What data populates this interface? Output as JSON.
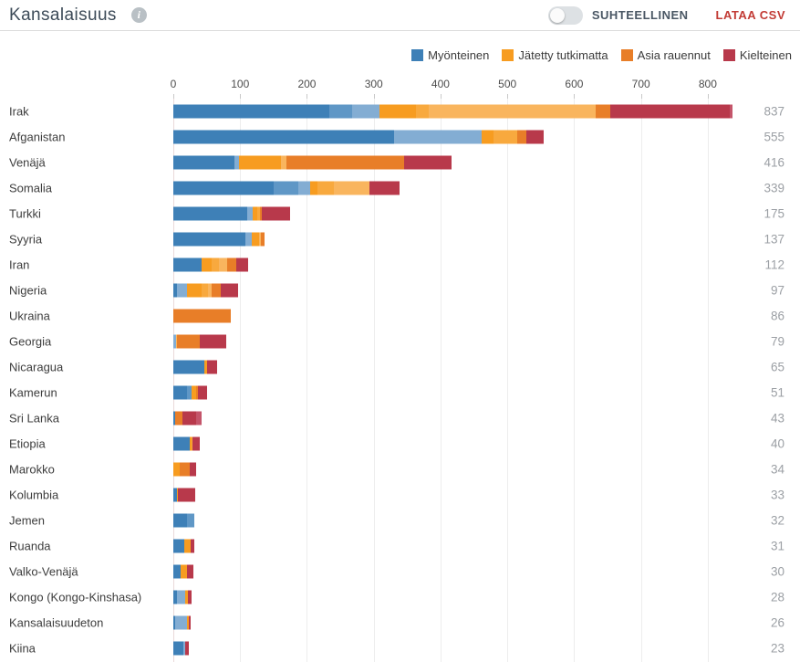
{
  "header": {
    "title": "Kansalaisuus",
    "toggle_label": "SUHTEELLINEN",
    "toggle_state": "off",
    "download_label": "LATAA CSV",
    "accent_red": "#c23b35"
  },
  "legend": [
    {
      "label": "Myönteinen",
      "color": "#3e80b7"
    },
    {
      "label": "Jätetty tutkimatta",
      "color": "#f79c20"
    },
    {
      "label": "Asia rauennut",
      "color": "#e87e28"
    },
    {
      "label": "Kielteinen",
      "color": "#b8394b"
    }
  ],
  "palette": {
    "b1": "#3e80b7",
    "b2": "#5f97c6",
    "b3": "#83add3",
    "o1": "#f79c20",
    "o2": "#f8a93e",
    "o3": "#f9b55e",
    "od": "#e87e28",
    "r1": "#b8394b",
    "r2": "#c4556a"
  },
  "chart_data": {
    "type": "bar",
    "orientation": "horizontal",
    "stacked": true,
    "title": "Kansalaisuus",
    "xlabel": "",
    "ylabel": "",
    "axis_ticks": [
      0,
      100,
      200,
      300,
      400,
      500,
      600,
      700,
      800
    ],
    "xlim": [
      0,
      837
    ],
    "grid": true,
    "legend_position": "top-right",
    "categories": [
      "Irak",
      "Afganistan",
      "Venäjä",
      "Somalia",
      "Turkki",
      "Syyria",
      "Iran",
      "Nigeria",
      "Ukraina",
      "Georgia",
      "Nicaragua",
      "Kamerun",
      "Sri Lanka",
      "Etiopia",
      "Marokko",
      "Kolumbia",
      "Jemen",
      "Ruanda",
      "Valko-Venäjä",
      "Kongo (Kongo-Kinshasa)",
      "Kansalaisuudeton",
      "Kiina"
    ],
    "totals": [
      837,
      555,
      416,
      339,
      175,
      137,
      112,
      97,
      86,
      79,
      65,
      51,
      43,
      40,
      34,
      33,
      32,
      31,
      30,
      28,
      26,
      23
    ],
    "series": [
      {
        "name": "Myönteinen",
        "values": [
          309,
          461,
          98,
          205,
          119,
          117,
          42,
          21,
          0,
          4,
          47,
          27,
          3,
          24,
          0,
          5,
          32,
          17,
          11,
          18,
          20,
          18
        ]
      },
      {
        "name": "Jätetty tutkimatta",
        "values": [
          323,
          54,
          71,
          89,
          11,
          14,
          38,
          37,
          0,
          2,
          4,
          7,
          0,
          5,
          9,
          2,
          0,
          9,
          10,
          4,
          3,
          0
        ]
      },
      {
        "name": "Asia rauennut",
        "values": [
          22,
          14,
          177,
          0,
          3,
          6,
          14,
          13,
          86,
          34,
          0,
          3,
          11,
          0,
          15,
          0,
          0,
          0,
          0,
          0,
          0,
          0
        ]
      },
      {
        "name": "Kielteinen",
        "values": [
          183,
          26,
          70,
          45,
          42,
          0,
          18,
          26,
          0,
          39,
          14,
          14,
          29,
          11,
          10,
          26,
          0,
          5,
          9,
          6,
          3,
          5
        ]
      }
    ],
    "rows": [
      {
        "name": "Irak",
        "total": 837,
        "segments": [
          {
            "c": "b1",
            "v": 234
          },
          {
            "c": "b2",
            "v": 33
          },
          {
            "c": "b3",
            "v": 42
          },
          {
            "c": "o1",
            "v": 54
          },
          {
            "c": "o2",
            "v": 19
          },
          {
            "c": "o3",
            "v": 250
          },
          {
            "c": "od",
            "v": 22
          },
          {
            "c": "r1",
            "v": 179
          },
          {
            "c": "r2",
            "v": 4
          }
        ]
      },
      {
        "name": "Afganistan",
        "total": 555,
        "segments": [
          {
            "c": "b1",
            "v": 330
          },
          {
            "c": "b3",
            "v": 131
          },
          {
            "c": "o1",
            "v": 18
          },
          {
            "c": "o2",
            "v": 36
          },
          {
            "c": "od",
            "v": 14
          },
          {
            "c": "r1",
            "v": 26
          }
        ]
      },
      {
        "name": "Venäjä",
        "total": 416,
        "segments": [
          {
            "c": "b1",
            "v": 92
          },
          {
            "c": "b3",
            "v": 6
          },
          {
            "c": "o1",
            "v": 63
          },
          {
            "c": "o3",
            "v": 8
          },
          {
            "c": "od",
            "v": 177
          },
          {
            "c": "r1",
            "v": 70
          }
        ]
      },
      {
        "name": "Somalia",
        "total": 339,
        "segments": [
          {
            "c": "b1",
            "v": 150
          },
          {
            "c": "b2",
            "v": 37
          },
          {
            "c": "b3",
            "v": 18
          },
          {
            "c": "o1",
            "v": 11
          },
          {
            "c": "o2",
            "v": 25
          },
          {
            "c": "o3",
            "v": 53
          },
          {
            "c": "r1",
            "v": 45
          }
        ]
      },
      {
        "name": "Turkki",
        "total": 175,
        "segments": [
          {
            "c": "b1",
            "v": 111
          },
          {
            "c": "b3",
            "v": 8
          },
          {
            "c": "o1",
            "v": 6
          },
          {
            "c": "o2",
            "v": 5
          },
          {
            "c": "od",
            "v": 3
          },
          {
            "c": "r1",
            "v": 42
          }
        ]
      },
      {
        "name": "Syyria",
        "total": 137,
        "segments": [
          {
            "c": "b1",
            "v": 108
          },
          {
            "c": "b3",
            "v": 9
          },
          {
            "c": "o1",
            "v": 12
          },
          {
            "c": "o3",
            "v": 2
          },
          {
            "c": "od",
            "v": 6
          }
        ]
      },
      {
        "name": "Iran",
        "total": 112,
        "segments": [
          {
            "c": "b1",
            "v": 42
          },
          {
            "c": "o1",
            "v": 15
          },
          {
            "c": "o2",
            "v": 11
          },
          {
            "c": "o3",
            "v": 12
          },
          {
            "c": "od",
            "v": 14
          },
          {
            "c": "r1",
            "v": 18
          }
        ]
      },
      {
        "name": "Nigeria",
        "total": 97,
        "segments": [
          {
            "c": "b1",
            "v": 6
          },
          {
            "c": "b3",
            "v": 15
          },
          {
            "c": "o1",
            "v": 21
          },
          {
            "c": "o2",
            "v": 10
          },
          {
            "c": "o3",
            "v": 6
          },
          {
            "c": "od",
            "v": 13
          },
          {
            "c": "r1",
            "v": 26
          }
        ]
      },
      {
        "name": "Ukraina",
        "total": 86,
        "segments": [
          {
            "c": "od",
            "v": 86
          }
        ]
      },
      {
        "name": "Georgia",
        "total": 79,
        "segments": [
          {
            "c": "b3",
            "v": 4
          },
          {
            "c": "o3",
            "v": 2
          },
          {
            "c": "od",
            "v": 34
          },
          {
            "c": "r1",
            "v": 39
          }
        ]
      },
      {
        "name": "Nicaragua",
        "total": 65,
        "segments": [
          {
            "c": "b1",
            "v": 47
          },
          {
            "c": "o1",
            "v": 4
          },
          {
            "c": "r1",
            "v": 14
          }
        ]
      },
      {
        "name": "Kamerun",
        "total": 51,
        "segments": [
          {
            "c": "b1",
            "v": 21
          },
          {
            "c": "b2",
            "v": 6
          },
          {
            "c": "o1",
            "v": 7
          },
          {
            "c": "od",
            "v": 3
          },
          {
            "c": "r1",
            "v": 14
          }
        ]
      },
      {
        "name": "Sri Lanka",
        "total": 43,
        "segments": [
          {
            "c": "b1",
            "v": 3
          },
          {
            "c": "od",
            "v": 11
          },
          {
            "c": "r1",
            "v": 20
          },
          {
            "c": "r2",
            "v": 9
          }
        ]
      },
      {
        "name": "Etiopia",
        "total": 40,
        "segments": [
          {
            "c": "b1",
            "v": 24
          },
          {
            "c": "o1",
            "v": 3
          },
          {
            "c": "o2",
            "v": 2
          },
          {
            "c": "r1",
            "v": 11
          }
        ]
      },
      {
        "name": "Marokko",
        "total": 34,
        "segments": [
          {
            "c": "o1",
            "v": 9
          },
          {
            "c": "od",
            "v": 15
          },
          {
            "c": "r1",
            "v": 10
          }
        ]
      },
      {
        "name": "Kolumbia",
        "total": 33,
        "segments": [
          {
            "c": "b1",
            "v": 5
          },
          {
            "c": "o1",
            "v": 2
          },
          {
            "c": "r1",
            "v": 26
          }
        ]
      },
      {
        "name": "Jemen",
        "total": 32,
        "segments": [
          {
            "c": "b1",
            "v": 20
          },
          {
            "c": "b2",
            "v": 12
          }
        ]
      },
      {
        "name": "Ruanda",
        "total": 31,
        "segments": [
          {
            "c": "b1",
            "v": 17
          },
          {
            "c": "o1",
            "v": 9
          },
          {
            "c": "r1",
            "v": 5
          }
        ]
      },
      {
        "name": "Valko-Venäjä",
        "total": 30,
        "segments": [
          {
            "c": "b1",
            "v": 11
          },
          {
            "c": "o1",
            "v": 10
          },
          {
            "c": "r1",
            "v": 9
          }
        ]
      },
      {
        "name": "Kongo (Kongo-Kinshasa)",
        "total": 28,
        "segments": [
          {
            "c": "b1",
            "v": 6
          },
          {
            "c": "b3",
            "v": 12
          },
          {
            "c": "o1",
            "v": 4
          },
          {
            "c": "r1",
            "v": 6
          }
        ]
      },
      {
        "name": "Kansalaisuudeton",
        "total": 26,
        "segments": [
          {
            "c": "b1",
            "v": 3
          },
          {
            "c": "b3",
            "v": 17
          },
          {
            "c": "o1",
            "v": 3
          },
          {
            "c": "r1",
            "v": 3
          }
        ]
      },
      {
        "name": "Kiina",
        "total": 23,
        "segments": [
          {
            "c": "b1",
            "v": 15
          },
          {
            "c": "b3",
            "v": 3
          },
          {
            "c": "r1",
            "v": 5
          }
        ]
      }
    ]
  }
}
